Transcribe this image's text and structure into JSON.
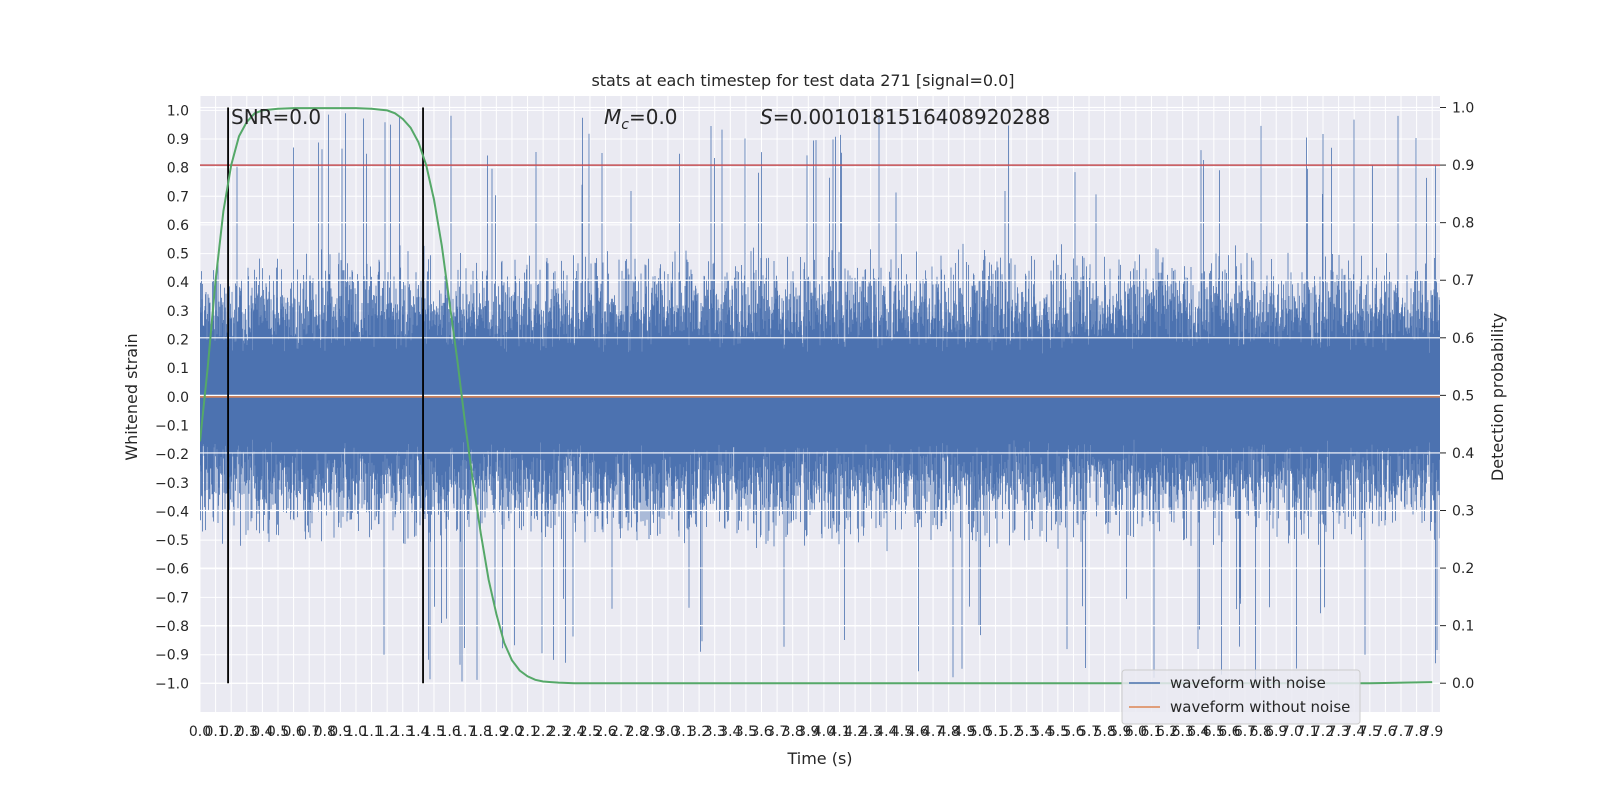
{
  "chart_data": {
    "type": "line",
    "title": "stats at each timestep for test data 271 [signal=0.0]",
    "xlabel": "Time (s)",
    "ylabel_left": "Whitened strain",
    "ylabel_right": "Detection probability",
    "xlim": [
      0.0,
      7.95
    ],
    "ylim_left": [
      -1.1,
      1.05
    ],
    "ylim_right": [
      -0.05,
      1.02
    ],
    "x_ticks": [
      0.0,
      0.1,
      0.2,
      0.3,
      0.4,
      0.5,
      0.6,
      0.7,
      0.8,
      0.9,
      1.0,
      1.1,
      1.2,
      1.3,
      1.4,
      1.5,
      1.6,
      1.7,
      1.8,
      1.9,
      2.0,
      2.1,
      2.2,
      2.3,
      2.4,
      2.5,
      2.6,
      2.7,
      2.8,
      2.9,
      3.0,
      3.1,
      3.2,
      3.3,
      3.4,
      3.5,
      3.6,
      3.7,
      3.8,
      3.9,
      4.0,
      4.1,
      4.2,
      4.3,
      4.4,
      4.5,
      4.6,
      4.7,
      4.8,
      4.9,
      5.0,
      5.1,
      5.2,
      5.3,
      5.4,
      5.5,
      5.6,
      5.7,
      5.8,
      5.9,
      6.0,
      6.1,
      6.2,
      6.3,
      6.4,
      6.5,
      6.6,
      6.7,
      6.8,
      6.9,
      7.0,
      7.1,
      7.2,
      7.3,
      7.4,
      7.5,
      7.6,
      7.7,
      7.8,
      7.9
    ],
    "y_ticks_left": [
      1.0,
      0.9,
      0.8,
      0.7,
      0.6,
      0.5,
      0.4,
      0.3,
      0.2,
      0.1,
      0.0,
      -0.1,
      -0.2,
      -0.3,
      -0.4,
      -0.5,
      -0.6,
      -0.7,
      -0.8,
      -0.9,
      -1.0
    ],
    "y_ticks_right": [
      1.0,
      0.9,
      0.8,
      0.7,
      0.6,
      0.5,
      0.4,
      0.3,
      0.2,
      0.1,
      0.0
    ],
    "annotations": {
      "snr": "SNR=0.0",
      "mc_symbol": "M",
      "mc_sub": "c",
      "mc_value": "=0.0",
      "s_symbol": "S",
      "s_value": "=0.0010181516408920288"
    },
    "series": [
      {
        "name": "waveform with noise",
        "color": "#4c72b0",
        "axis": "left",
        "envelope_typical": 0.45,
        "envelope_peak": 1.0
      },
      {
        "name": "waveform without noise",
        "color": "#dd8452",
        "axis": "left",
        "values": "constant 0.0"
      },
      {
        "color": "#55a868",
        "axis": "right",
        "x": [
          0.0,
          0.05,
          0.1,
          0.15,
          0.2,
          0.25,
          0.3,
          0.35,
          0.4,
          0.5,
          0.6,
          0.8,
          1.0,
          1.1,
          1.2,
          1.25,
          1.3,
          1.35,
          1.4,
          1.45,
          1.5,
          1.55,
          1.6,
          1.65,
          1.7,
          1.75,
          1.8,
          1.85,
          1.9,
          1.95,
          2.0,
          2.05,
          2.1,
          2.15,
          2.2,
          2.25,
          2.3,
          2.4,
          2.6,
          3.0,
          4.0,
          5.0,
          6.0,
          7.0,
          7.5,
          7.9
        ],
        "values": [
          0.42,
          0.55,
          0.7,
          0.82,
          0.9,
          0.95,
          0.975,
          0.99,
          0.995,
          0.998,
          0.999,
          0.999,
          0.999,
          0.998,
          0.995,
          0.99,
          0.98,
          0.965,
          0.94,
          0.9,
          0.84,
          0.76,
          0.66,
          0.56,
          0.45,
          0.35,
          0.26,
          0.18,
          0.12,
          0.07,
          0.04,
          0.022,
          0.012,
          0.006,
          0.003,
          0.002,
          0.001,
          0.0,
          0.0,
          0.0,
          0.0,
          0.0,
          0.0,
          0.0,
          0.0,
          0.002
        ]
      }
    ],
    "threshold": {
      "axis": "right",
      "value": 0.9,
      "color": "#c44e52"
    },
    "vertical_markers": {
      "x": [
        0.18,
        1.43
      ],
      "color": "#000000"
    },
    "grid": true,
    "legend_position": "lower-right"
  }
}
